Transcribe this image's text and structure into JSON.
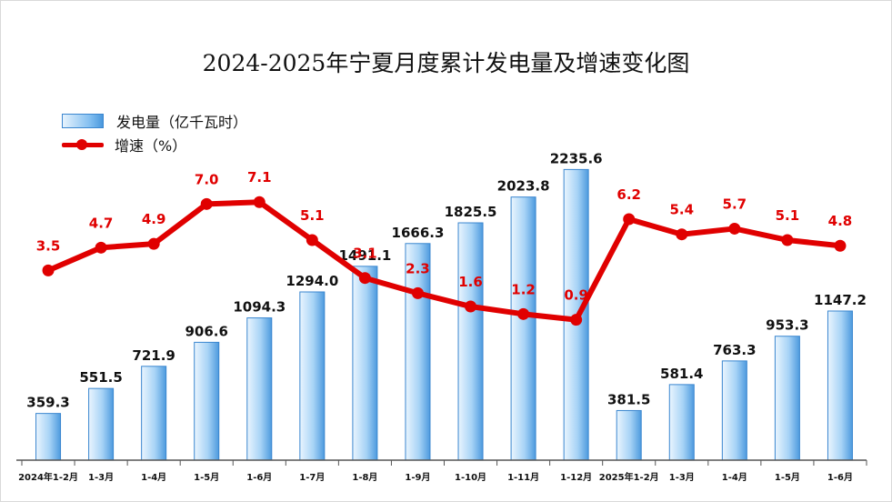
{
  "chart_data": {
    "type": "bar",
    "title": "2024-2025年宁夏月度累计发电量及增速变化图",
    "categories": [
      "2024年1-2月",
      "1-3月",
      "1-4月",
      "1-5月",
      "1-6月",
      "1-7月",
      "1-8月",
      "1-9月",
      "1-10月",
      "1-11月",
      "1-12月",
      "2025年1-2月",
      "1-3月",
      "1-4月",
      "1-5月",
      "1-6月"
    ],
    "series": [
      {
        "name": "发电量（亿千瓦时）",
        "type": "bar",
        "axis": "left",
        "values": [
          359.3,
          551.5,
          721.9,
          906.6,
          1094.3,
          1294.0,
          1491.1,
          1666.3,
          1825.5,
          2023.8,
          2235.6,
          381.5,
          581.4,
          763.3,
          953.3,
          1147.2
        ],
        "labels": [
          "359.3",
          "551.5",
          "721.9",
          "906.6",
          "1094.3",
          "1294.0",
          "1491.1",
          "1666.3",
          "1825.5",
          "2023.8",
          "2235.6",
          "381.5",
          "581.4",
          "763.3",
          "953.3",
          "1147.2"
        ]
      },
      {
        "name": "增速（%）",
        "type": "line",
        "axis": "right",
        "values": [
          3.5,
          4.7,
          4.9,
          7.0,
          7.1,
          5.1,
          3.1,
          2.3,
          1.6,
          1.2,
          0.9,
          6.2,
          5.4,
          5.7,
          5.1,
          4.8
        ],
        "labels": [
          "3.5",
          "4.7",
          "4.9",
          "7.0",
          "7.1",
          "5.1",
          "3.1",
          "2.3",
          "1.6",
          "1.2",
          "0.9",
          "6.2",
          "5.4",
          "5.7",
          "5.1",
          "4.8"
        ]
      }
    ],
    "ylim_left": [
      0,
      2700
    ],
    "ylim_right": [
      -6.5,
      12
    ],
    "grid": false,
    "legend_position": "top-left",
    "colors": {
      "bar": "#7fbdf0",
      "bar_edge": "#3a86cf",
      "line": "#e00000",
      "border": "#d9d9d9"
    }
  }
}
